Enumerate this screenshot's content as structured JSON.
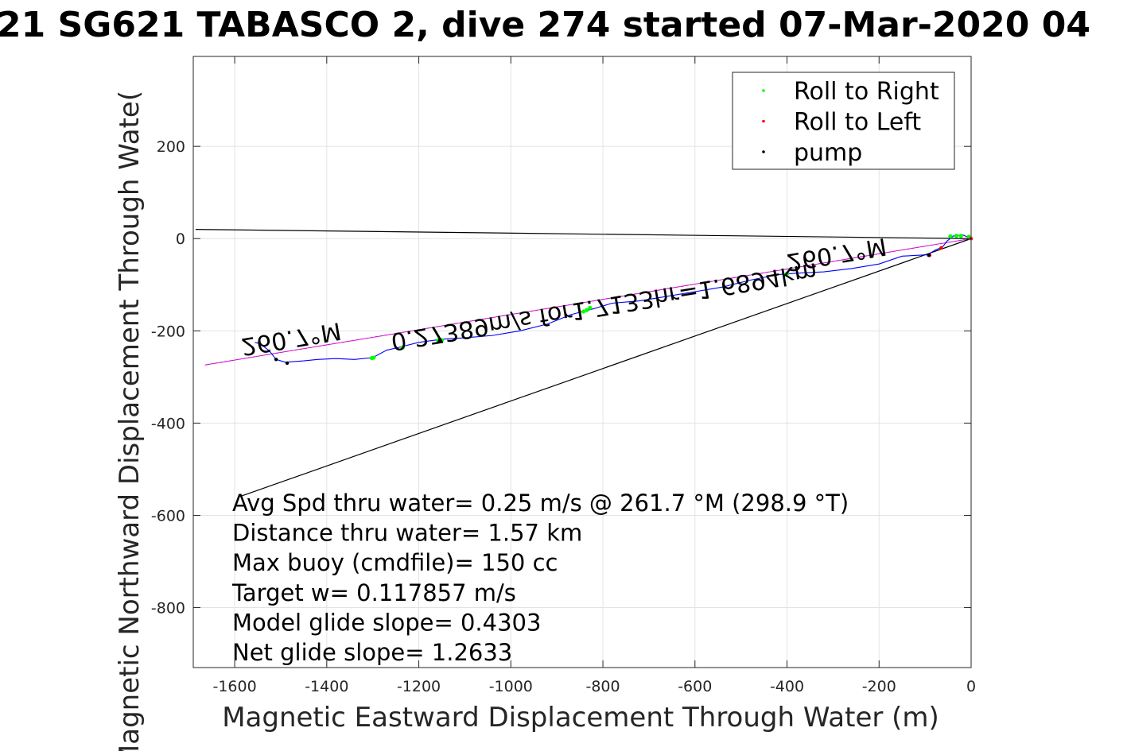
{
  "chart_data": {
    "type": "line",
    "title": "21 SG621 TABASCO 2, dive 274 started 07-Mar-2020 04",
    "xlabel": "Magnetic Eastward Displacement Through Water (m)",
    "ylabel": "Magnetic Northward Displacement Through Wate(",
    "xlim": [
      -1690,
      0
    ],
    "ylim": [
      -930,
      395
    ],
    "xticks": [
      -1600,
      -1400,
      -1200,
      -1000,
      -800,
      -600,
      -400,
      -200,
      0
    ],
    "yticks": [
      200,
      0,
      -200,
      -400,
      -600,
      -800
    ],
    "grid": true,
    "legend": {
      "placement": "top-right",
      "entries": [
        {
          "name": "Roll to Right",
          "color": "#00ff00"
        },
        {
          "name": "Roll to Left",
          "color": "#ff0000"
        },
        {
          "name": "pump",
          "color": "#000000"
        }
      ]
    },
    "track": {
      "color": "#0000ff",
      "points": [
        [
          0,
          0
        ],
        [
          -18,
          8
        ],
        [
          -38,
          6
        ],
        [
          -52,
          -5
        ],
        [
          -62,
          -18
        ],
        [
          -78,
          -25
        ],
        [
          -95,
          -35
        ],
        [
          -150,
          -38
        ],
        [
          -200,
          -55
        ],
        [
          -260,
          -65
        ],
        [
          -320,
          -72
        ],
        [
          -380,
          -75
        ],
        [
          -420,
          -78
        ],
        [
          -480,
          -90
        ],
        [
          -540,
          -105
        ],
        [
          -600,
          -115
        ],
        [
          -660,
          -125
        ],
        [
          -720,
          -135
        ],
        [
          -780,
          -140
        ],
        [
          -820,
          -152
        ],
        [
          -870,
          -165
        ],
        [
          -920,
          -185
        ],
        [
          -980,
          -200
        ],
        [
          -1040,
          -210
        ],
        [
          -1100,
          -215
        ],
        [
          -1150,
          -218
        ],
        [
          -1200,
          -225
        ],
        [
          -1240,
          -235
        ],
        [
          -1270,
          -242
        ],
        [
          -1300,
          -258
        ],
        [
          -1340,
          -262
        ],
        [
          -1380,
          -260
        ],
        [
          -1420,
          -262
        ],
        [
          -1450,
          -265
        ],
        [
          -1490,
          -268
        ],
        [
          -1510,
          -262
        ],
        [
          -1525,
          -243
        ],
        [
          -1545,
          -228
        ],
        [
          -1556,
          -225
        ]
      ]
    },
    "markers": {
      "roll_right": [
        [
          -5,
          4
        ],
        [
          -22,
          6
        ],
        [
          -32,
          6
        ],
        [
          -45,
          5
        ],
        [
          -400,
          -76
        ],
        [
          -402,
          -78
        ],
        [
          -828,
          -150
        ],
        [
          -835,
          -155
        ],
        [
          -842,
          -158
        ],
        [
          -1150,
          -220
        ],
        [
          -1158,
          -221
        ],
        [
          -1235,
          -236
        ],
        [
          -1298,
          -258
        ],
        [
          -1302,
          -259
        ]
      ],
      "roll_left": [
        [
          0,
          0
        ],
        [
          -65,
          -20
        ],
        [
          -90,
          -36
        ]
      ],
      "pump": [
        [
          -92,
          -36
        ],
        [
          -1155,
          -222
        ],
        [
          -1510,
          -262
        ],
        [
          -1486,
          -270
        ]
      ]
    },
    "lines": [
      {
        "name": "north-reference",
        "color": "#000000",
        "points": [
          [
            0,
            0
          ],
          [
            -1685,
            20
          ]
        ]
      },
      {
        "name": "course-line",
        "color": "#000000",
        "points": [
          [
            0,
            0
          ],
          [
            -1585,
            -558
          ]
        ]
      },
      {
        "name": "heading-line",
        "color": "#ff00ff",
        "points": [
          [
            0,
            0
          ],
          [
            -1665,
            -274
          ]
        ]
      }
    ],
    "annotations": {
      "mirrored": [
        {
          "text": "260.7°M",
          "x": -1480,
          "y": -200,
          "rotate": 9.5
        },
        {
          "text": "0.27389m/s for1.7133hr=1.6894km",
          "x": -800,
          "y": -130,
          "rotate": 9.5
        },
        {
          "text": "260.7°M",
          "x": -295,
          "y": -17,
          "rotate": 9.5
        }
      ],
      "notes": [
        "Avg Spd thru water=  0.25 m/s @ 261.7 °M (298.9 °T)",
        "Distance thru water=  1.57 km",
        "Max buoy (cmdfile)= 150 cc",
        "Target w= 0.117857 m/s",
        "Model glide slope= 0.4303",
        "Net glide slope= 1.2633"
      ]
    }
  }
}
